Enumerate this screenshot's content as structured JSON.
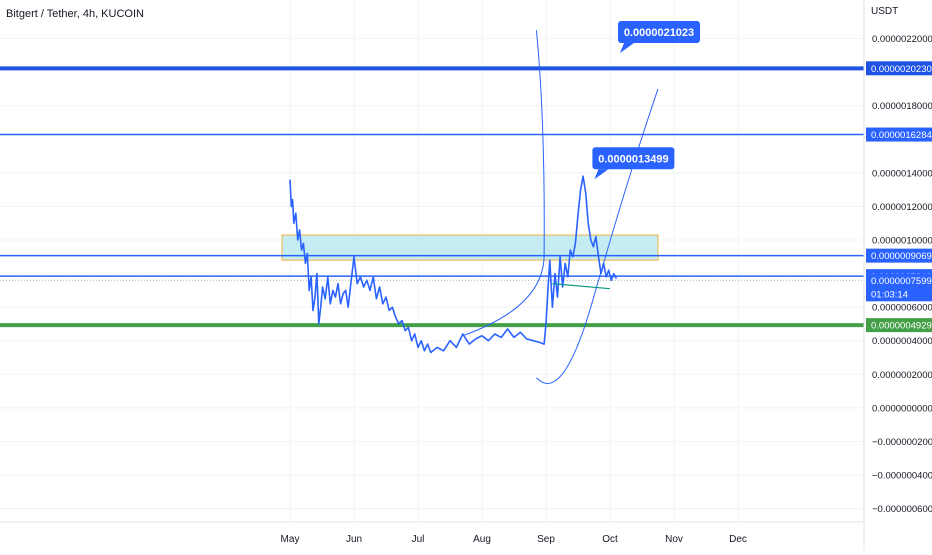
{
  "header": {
    "title": "Bitgert / Tether, 4h, KUCOIN",
    "unit": "USDT"
  },
  "chart_data": {
    "type": "line",
    "ylim": [
      -6.8e-07,
      2.43e-06
    ],
    "x_months": [
      "May",
      "Jun",
      "Jul",
      "Aug",
      "Sep",
      "Oct",
      "Nov",
      "Dec"
    ],
    "y_ticks": [
      {
        "value": 2.2e-06,
        "label": "0.0000022000"
      },
      {
        "value": 1.8e-06,
        "label": "0.0000018000"
      },
      {
        "value": 1.4e-06,
        "label": "0.0000014000"
      },
      {
        "value": 1.2e-06,
        "label": "0.0000012000"
      },
      {
        "value": 1e-06,
        "label": "0.0000010000"
      },
      {
        "value": 6e-07,
        "label": "0.0000006000"
      },
      {
        "value": 4e-07,
        "label": "0.0000004000"
      },
      {
        "value": 2e-07,
        "label": "0.0000002000"
      },
      {
        "value": 0.0,
        "label": "0.0000000000"
      },
      {
        "value": -2e-07,
        "label": "−0.0000002000"
      },
      {
        "value": -4e-07,
        "label": "−0.0000004000"
      },
      {
        "value": -6e-07,
        "label": "−0.0000006000"
      }
    ],
    "horizontal_levels": [
      {
        "value": 2.023e-06,
        "label": "0.0000020230",
        "color": "#1e53e5",
        "weight": "thick"
      },
      {
        "value": 1.6284e-06,
        "label": "0.0000016284",
        "color": "#2962ff",
        "weight": "normal"
      },
      {
        "value": 9.069e-07,
        "label": "0.0000009069",
        "color": "#2962ff",
        "weight": "normal"
      },
      {
        "value": 7.848e-07,
        "label": "0.0000007848",
        "color": "#2962ff",
        "weight": "normal"
      },
      {
        "value": 4.929e-07,
        "label": "0.0000004929",
        "color": "#43a047",
        "weight": "thick"
      }
    ],
    "current_price": {
      "value": 7.599e-07,
      "label": "0.0000007599",
      "countdown": "01:03:14",
      "color": "#2962ff"
    },
    "callouts": [
      {
        "value": 2.1023e-06,
        "label": "0.0000021023",
        "month": 5.75
      },
      {
        "value": 1.3499e-06,
        "label": "0.0000013499",
        "month": 5.35
      }
    ],
    "zone": {
      "from": 8.8e-07,
      "to": 1.03e-06,
      "month_start": 0.0,
      "month_end": 5.75,
      "fill": "#c6ecf3",
      "border": "#f4b340"
    },
    "series": [
      {
        "x": [
          0.0,
          0.02,
          0.04,
          0.06,
          0.09,
          0.12,
          0.15,
          0.18,
          0.21,
          0.24,
          0.27,
          0.3,
          0.33,
          0.36,
          0.39,
          0.42,
          0.45,
          0.48,
          0.51,
          0.55,
          0.59,
          0.63,
          0.67,
          0.71,
          0.75,
          0.79,
          0.83,
          0.87,
          0.91,
          0.95,
          1.0,
          1.05,
          1.1,
          1.15,
          1.2,
          1.25,
          1.3,
          1.35,
          1.4,
          1.45,
          1.5,
          1.55,
          1.6,
          1.65,
          1.7,
          1.75,
          1.8,
          1.85,
          1.9,
          1.95,
          2.0,
          2.05,
          2.1,
          2.15,
          2.2,
          2.3,
          2.4,
          2.5,
          2.6,
          2.7,
          2.8,
          2.9,
          3.0,
          3.1,
          3.2,
          3.3,
          3.4,
          3.5,
          3.6,
          3.7,
          3.8,
          3.9,
          3.97,
          4.0,
          4.03,
          4.06,
          4.1,
          4.14,
          4.18,
          4.22,
          4.26,
          4.3,
          4.34,
          4.38,
          4.42,
          4.46,
          4.5,
          4.54,
          4.58,
          4.62,
          4.66,
          4.7,
          4.74,
          4.78,
          4.82,
          4.86,
          4.9,
          4.94,
          4.98,
          5.02,
          5.06,
          5.1
        ],
        "y": [
          1.36e-06,
          1.2e-06,
          1.24e-06,
          1.1e-06,
          1.16e-06,
          1e-06,
          1.06e-06,
          9.4e-07,
          9.8e-07,
          8.6e-07,
          9.2e-07,
          7e-07,
          7.8e-07,
          5.8e-07,
          6.6e-07,
          8e-07,
          5e-07,
          6e-07,
          7.2e-07,
          6.5e-07,
          7.8e-07,
          6.2e-07,
          7e-07,
          6.6e-07,
          7.4e-07,
          6.2e-07,
          6.8e-07,
          7e-07,
          6e-07,
          7.4e-07,
          9e-07,
          7.4e-07,
          7.8e-07,
          7.2e-07,
          7.6e-07,
          7e-07,
          7.8e-07,
          6.5e-07,
          7.2e-07,
          6.2e-07,
          6.6e-07,
          5.8e-07,
          6e-07,
          5.4e-07,
          5e-07,
          5.2e-07,
          4.6e-07,
          4.8e-07,
          4e-07,
          4.4e-07,
          3.6e-07,
          4e-07,
          3.4e-07,
          3.8e-07,
          3.3e-07,
          3.6e-07,
          3.4e-07,
          4e-07,
          3.6e-07,
          4.4e-07,
          3.8e-07,
          4.1e-07,
          4.3e-07,
          4e-07,
          4.4e-07,
          4.2e-07,
          4.7e-07,
          4.2e-07,
          4.5e-07,
          4.1e-07,
          4e-07,
          3.9e-07,
          3.8e-07,
          5e-07,
          7e-07,
          8.8e-07,
          6e-07,
          8e-07,
          6.6e-07,
          9e-07,
          7.2e-07,
          8.6e-07,
          7.8e-07,
          9.4e-07,
          9e-07,
          9.8e-07,
          1.15e-06,
          1.3e-06,
          1.38e-06,
          1.28e-06,
          1.1e-06,
          1e-06,
          9.6e-07,
          1.02e-06,
          9e-07,
          8e-07,
          8.6e-07,
          7.8e-07,
          8.2e-07,
          7.6e-07,
          8e-07,
          7.7e-07
        ]
      }
    ]
  }
}
